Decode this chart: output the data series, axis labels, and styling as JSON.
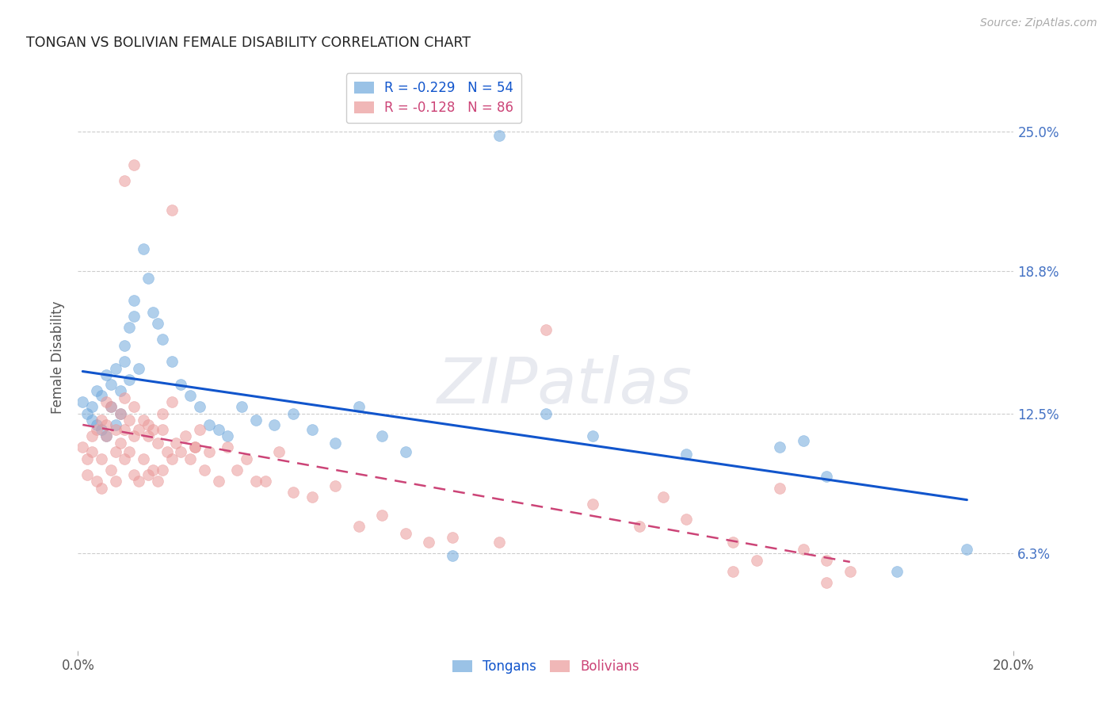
{
  "title": "TONGAN VS BOLIVIAN FEMALE DISABILITY CORRELATION CHART",
  "source": "Source: ZipAtlas.com",
  "ylabel": "Female Disability",
  "ytick_labels": [
    "25.0%",
    "18.8%",
    "12.5%",
    "6.3%"
  ],
  "ytick_values": [
    0.25,
    0.188,
    0.125,
    0.063
  ],
  "xlim": [
    0.0,
    0.2
  ],
  "ylim": [
    0.02,
    0.28
  ],
  "watermark_text": "ZIPatlas",
  "legend_tongan": "R = -0.229   N = 54",
  "legend_bolivian": "R = -0.128   N = 86",
  "legend_label_tongan": "Tongans",
  "legend_label_bolivian": "Bolivians",
  "tongan_color": "#6fa8dc",
  "bolivian_color": "#ea9999",
  "tongan_line_color": "#1155cc",
  "bolivian_line_color": "#cc4477",
  "background_color": "#ffffff",
  "grid_color": "#c0c0c0",
  "title_color": "#222222",
  "right_tick_color": "#4472c4",
  "tongan_x": [
    0.001,
    0.002,
    0.003,
    0.003,
    0.004,
    0.004,
    0.005,
    0.005,
    0.006,
    0.006,
    0.007,
    0.007,
    0.008,
    0.008,
    0.009,
    0.009,
    0.01,
    0.01,
    0.011,
    0.011,
    0.012,
    0.012,
    0.013,
    0.014,
    0.015,
    0.016,
    0.017,
    0.018,
    0.02,
    0.022,
    0.024,
    0.026,
    0.028,
    0.03,
    0.032,
    0.035,
    0.038,
    0.042,
    0.046,
    0.05,
    0.055,
    0.06,
    0.065,
    0.07,
    0.08,
    0.09,
    0.1,
    0.11,
    0.13,
    0.15,
    0.155,
    0.16,
    0.175,
    0.19
  ],
  "tongan_y": [
    0.13,
    0.125,
    0.122,
    0.128,
    0.135,
    0.12,
    0.133,
    0.118,
    0.142,
    0.115,
    0.138,
    0.128,
    0.145,
    0.12,
    0.135,
    0.125,
    0.155,
    0.148,
    0.163,
    0.14,
    0.168,
    0.175,
    0.145,
    0.198,
    0.185,
    0.17,
    0.165,
    0.158,
    0.148,
    0.138,
    0.133,
    0.128,
    0.12,
    0.118,
    0.115,
    0.128,
    0.122,
    0.12,
    0.125,
    0.118,
    0.112,
    0.128,
    0.115,
    0.108,
    0.062,
    0.248,
    0.125,
    0.115,
    0.107,
    0.11,
    0.113,
    0.097,
    0.055,
    0.065
  ],
  "bolivian_x": [
    0.001,
    0.002,
    0.002,
    0.003,
    0.003,
    0.004,
    0.004,
    0.005,
    0.005,
    0.005,
    0.006,
    0.006,
    0.006,
    0.007,
    0.007,
    0.008,
    0.008,
    0.008,
    0.009,
    0.009,
    0.01,
    0.01,
    0.01,
    0.011,
    0.011,
    0.012,
    0.012,
    0.012,
    0.013,
    0.013,
    0.014,
    0.014,
    0.015,
    0.015,
    0.016,
    0.016,
    0.017,
    0.017,
    0.018,
    0.018,
    0.019,
    0.02,
    0.02,
    0.021,
    0.022,
    0.023,
    0.024,
    0.025,
    0.026,
    0.027,
    0.028,
    0.03,
    0.032,
    0.034,
    0.036,
    0.038,
    0.04,
    0.043,
    0.046,
    0.05,
    0.055,
    0.06,
    0.065,
    0.07,
    0.075,
    0.08,
    0.09,
    0.1,
    0.11,
    0.12,
    0.125,
    0.13,
    0.14,
    0.145,
    0.15,
    0.155,
    0.16,
    0.165,
    0.01,
    0.012,
    0.015,
    0.018,
    0.02,
    0.025,
    0.14,
    0.16
  ],
  "bolivian_y": [
    0.11,
    0.105,
    0.098,
    0.115,
    0.108,
    0.118,
    0.095,
    0.122,
    0.105,
    0.092,
    0.13,
    0.12,
    0.115,
    0.128,
    0.1,
    0.118,
    0.108,
    0.095,
    0.125,
    0.112,
    0.132,
    0.118,
    0.105,
    0.122,
    0.108,
    0.128,
    0.115,
    0.098,
    0.118,
    0.095,
    0.122,
    0.105,
    0.115,
    0.098,
    0.118,
    0.1,
    0.112,
    0.095,
    0.118,
    0.1,
    0.108,
    0.215,
    0.105,
    0.112,
    0.108,
    0.115,
    0.105,
    0.11,
    0.118,
    0.1,
    0.108,
    0.095,
    0.11,
    0.1,
    0.105,
    0.095,
    0.095,
    0.108,
    0.09,
    0.088,
    0.093,
    0.075,
    0.08,
    0.072,
    0.068,
    0.07,
    0.068,
    0.162,
    0.085,
    0.075,
    0.088,
    0.078,
    0.068,
    0.06,
    0.092,
    0.065,
    0.06,
    0.055,
    0.228,
    0.235,
    0.12,
    0.125,
    0.13,
    0.11,
    0.055,
    0.05
  ]
}
